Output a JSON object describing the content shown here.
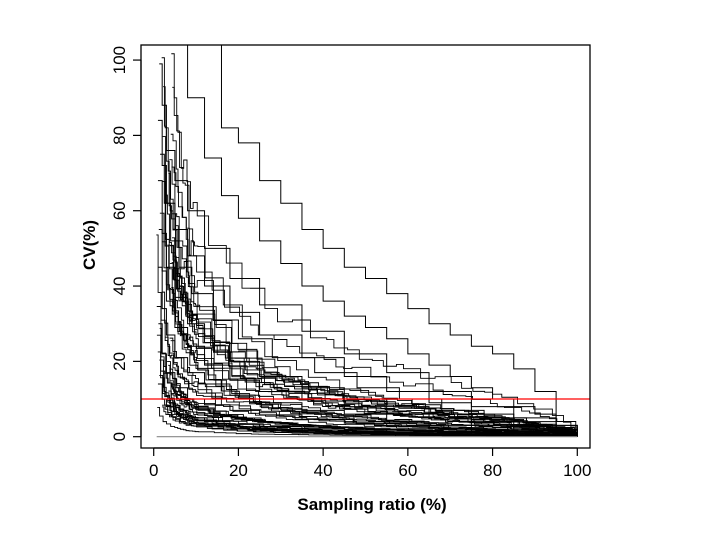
{
  "chart_data": {
    "type": "line",
    "title": "",
    "xlabel": "Sampling ratio (%)",
    "ylabel": "CV(%)",
    "xlim": [
      -3,
      103
    ],
    "ylim": [
      -3,
      104
    ],
    "x_ticks": [
      0,
      20,
      40,
      60,
      80,
      100
    ],
    "y_ticks": [
      0,
      20,
      40,
      60,
      80,
      100
    ],
    "x_tick_labels": [
      "0",
      "20",
      "40",
      "60",
      "80",
      "100"
    ],
    "y_tick_labels": [
      "0",
      "20",
      "40",
      "60",
      "80",
      "100"
    ],
    "grid": false,
    "legend": "none",
    "line_color": "#000000",
    "threshold_color": "#ff0000",
    "flat_line_color": "#888888",
    "threshold_line": {
      "y": 10
    },
    "flat_series": {
      "x": [
        0.7,
        100
      ],
      "y": [
        0,
        0
      ]
    },
    "curve_family": {
      "count": 50,
      "x_start_range": [
        0.6,
        4.5
      ],
      "x_end": 100,
      "start_cv_range": [
        8,
        100
      ],
      "shape": "stepwise decreasing, steep near zero then tapering to 0 at 100"
    },
    "series": [
      {
        "x": [
          13,
          16,
          20,
          25,
          30,
          35,
          40,
          45,
          50,
          55,
          60,
          65,
          70,
          75,
          80,
          85,
          90,
          95,
          100
        ],
        "y": [
          104,
          82,
          78,
          68,
          62,
          55,
          50,
          45,
          42,
          38,
          34,
          30,
          27,
          24,
          22,
          18,
          12,
          3,
          0
        ]
      },
      {
        "x": [
          4,
          8,
          12,
          16,
          20,
          25,
          30,
          35,
          40,
          45,
          50,
          55,
          60,
          65,
          70,
          75,
          80,
          85,
          90,
          95,
          100
        ],
        "y": [
          104,
          90,
          74,
          64,
          58,
          52,
          46,
          40,
          36,
          32,
          29,
          26,
          22,
          19,
          16,
          13,
          10,
          8,
          6,
          3,
          0
        ]
      },
      {
        "x": [
          1.3,
          2,
          3,
          5,
          8,
          12,
          18,
          25,
          35,
          45,
          55,
          65,
          75,
          85,
          95,
          100
        ],
        "y": [
          99,
          88,
          76,
          68,
          60,
          50,
          42,
          35,
          28,
          22,
          17,
          12,
          8,
          5,
          2,
          0
        ]
      },
      {
        "x": [
          1.0,
          2,
          3,
          5,
          8,
          12,
          18,
          25,
          35,
          45,
          55,
          65,
          75,
          85,
          95,
          100
        ],
        "y": [
          84,
          72,
          62,
          55,
          48,
          40,
          33,
          27,
          21,
          16,
          12,
          9,
          6,
          4,
          2,
          0
        ]
      },
      {
        "x": [
          1.5,
          2.5,
          4,
          6,
          9,
          14,
          20,
          28,
          38,
          48,
          58,
          68,
          78,
          88,
          95,
          100
        ],
        "y": [
          75,
          62,
          52,
          45,
          38,
          31,
          26,
          21,
          17,
          13,
          10,
          7,
          5,
          3,
          1,
          0
        ]
      },
      {
        "x": [
          1.0,
          2,
          3,
          5,
          8,
          12,
          18,
          25,
          35,
          45,
          55,
          65,
          75,
          85,
          95,
          100
        ],
        "y": [
          68,
          54,
          45,
          37,
          30,
          25,
          20,
          16,
          13,
          10,
          8,
          6,
          4,
          3,
          1,
          0
        ]
      },
      {
        "x": [
          1.2,
          2,
          3,
          5,
          8,
          12,
          18,
          25,
          35,
          45,
          55,
          65,
          75,
          85,
          95,
          100
        ],
        "y": [
          55,
          44,
          36,
          29,
          24,
          19,
          15,
          12,
          10,
          8,
          6,
          5,
          3,
          2,
          1,
          0
        ]
      },
      {
        "x": [
          1.0,
          2,
          3,
          5,
          8,
          12,
          18,
          25,
          35,
          45,
          55,
          65,
          75,
          85,
          95,
          100
        ],
        "y": [
          45,
          34,
          27,
          21,
          17,
          14,
          11,
          9,
          7,
          6,
          4,
          3,
          2,
          1.5,
          0.7,
          0
        ]
      },
      {
        "x": [
          1.1,
          2,
          3,
          5,
          8,
          12,
          18,
          25,
          35,
          45,
          55,
          65,
          75,
          85,
          95,
          100
        ],
        "y": [
          30,
          22,
          17,
          13,
          10,
          8.5,
          7,
          5.8,
          4.6,
          3.6,
          2.8,
          2.1,
          1.5,
          1,
          0.4,
          0
        ]
      },
      {
        "x": [
          1.0,
          2,
          3,
          5,
          8,
          12,
          18,
          25,
          35,
          45,
          55,
          65,
          75,
          85,
          95,
          100
        ],
        "y": [
          14,
          10,
          8,
          6,
          5,
          4,
          3.3,
          2.7,
          2.1,
          1.7,
          1.3,
          1,
          0.7,
          0.4,
          0.2,
          0
        ]
      }
    ]
  }
}
